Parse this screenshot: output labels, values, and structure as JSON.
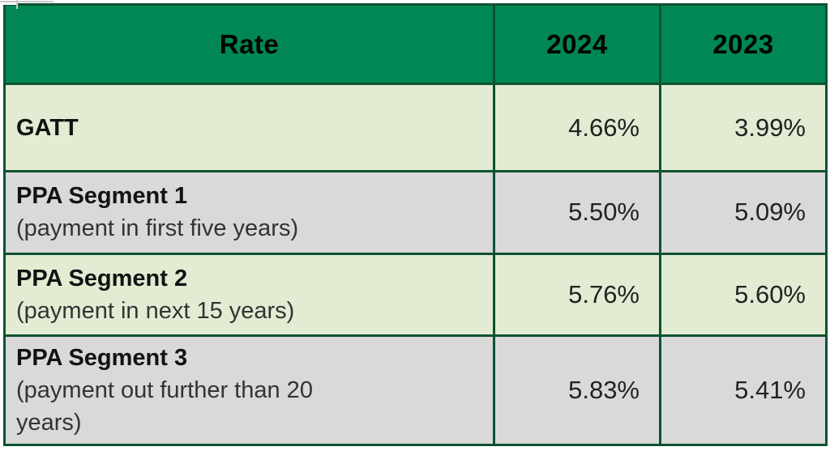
{
  "table": {
    "columns": [
      {
        "label": "Rate"
      },
      {
        "label": "2024"
      },
      {
        "label": "2023"
      }
    ],
    "rows": [
      {
        "label": "GATT",
        "sublabel": "",
        "v2024": "4.66%",
        "v2023": "3.99%"
      },
      {
        "label": "PPA Segment 1",
        "sublabel": "(payment in first five years)",
        "v2024": "5.50%",
        "v2023": "5.09%"
      },
      {
        "label": "PPA Segment 2",
        "sublabel": "(payment in next 15 years)",
        "v2024": "5.76%",
        "v2023": "5.60%"
      },
      {
        "label": "PPA Segment 3",
        "sublabel": "(payment out further than 20\nyears)",
        "v2024": "5.83%",
        "v2023": "5.41%"
      }
    ],
    "colors": {
      "header_bg": "#008753",
      "border": "#0e5231",
      "row_green": "#e1ecd3",
      "row_gray": "#d9d9d9",
      "header_text": "#000000",
      "label_text": "#121212",
      "sublabel_text": "#333333",
      "value_text": "#222222",
      "page_bg": "#ffffff",
      "gridline": "#c9c9c9"
    }
  }
}
